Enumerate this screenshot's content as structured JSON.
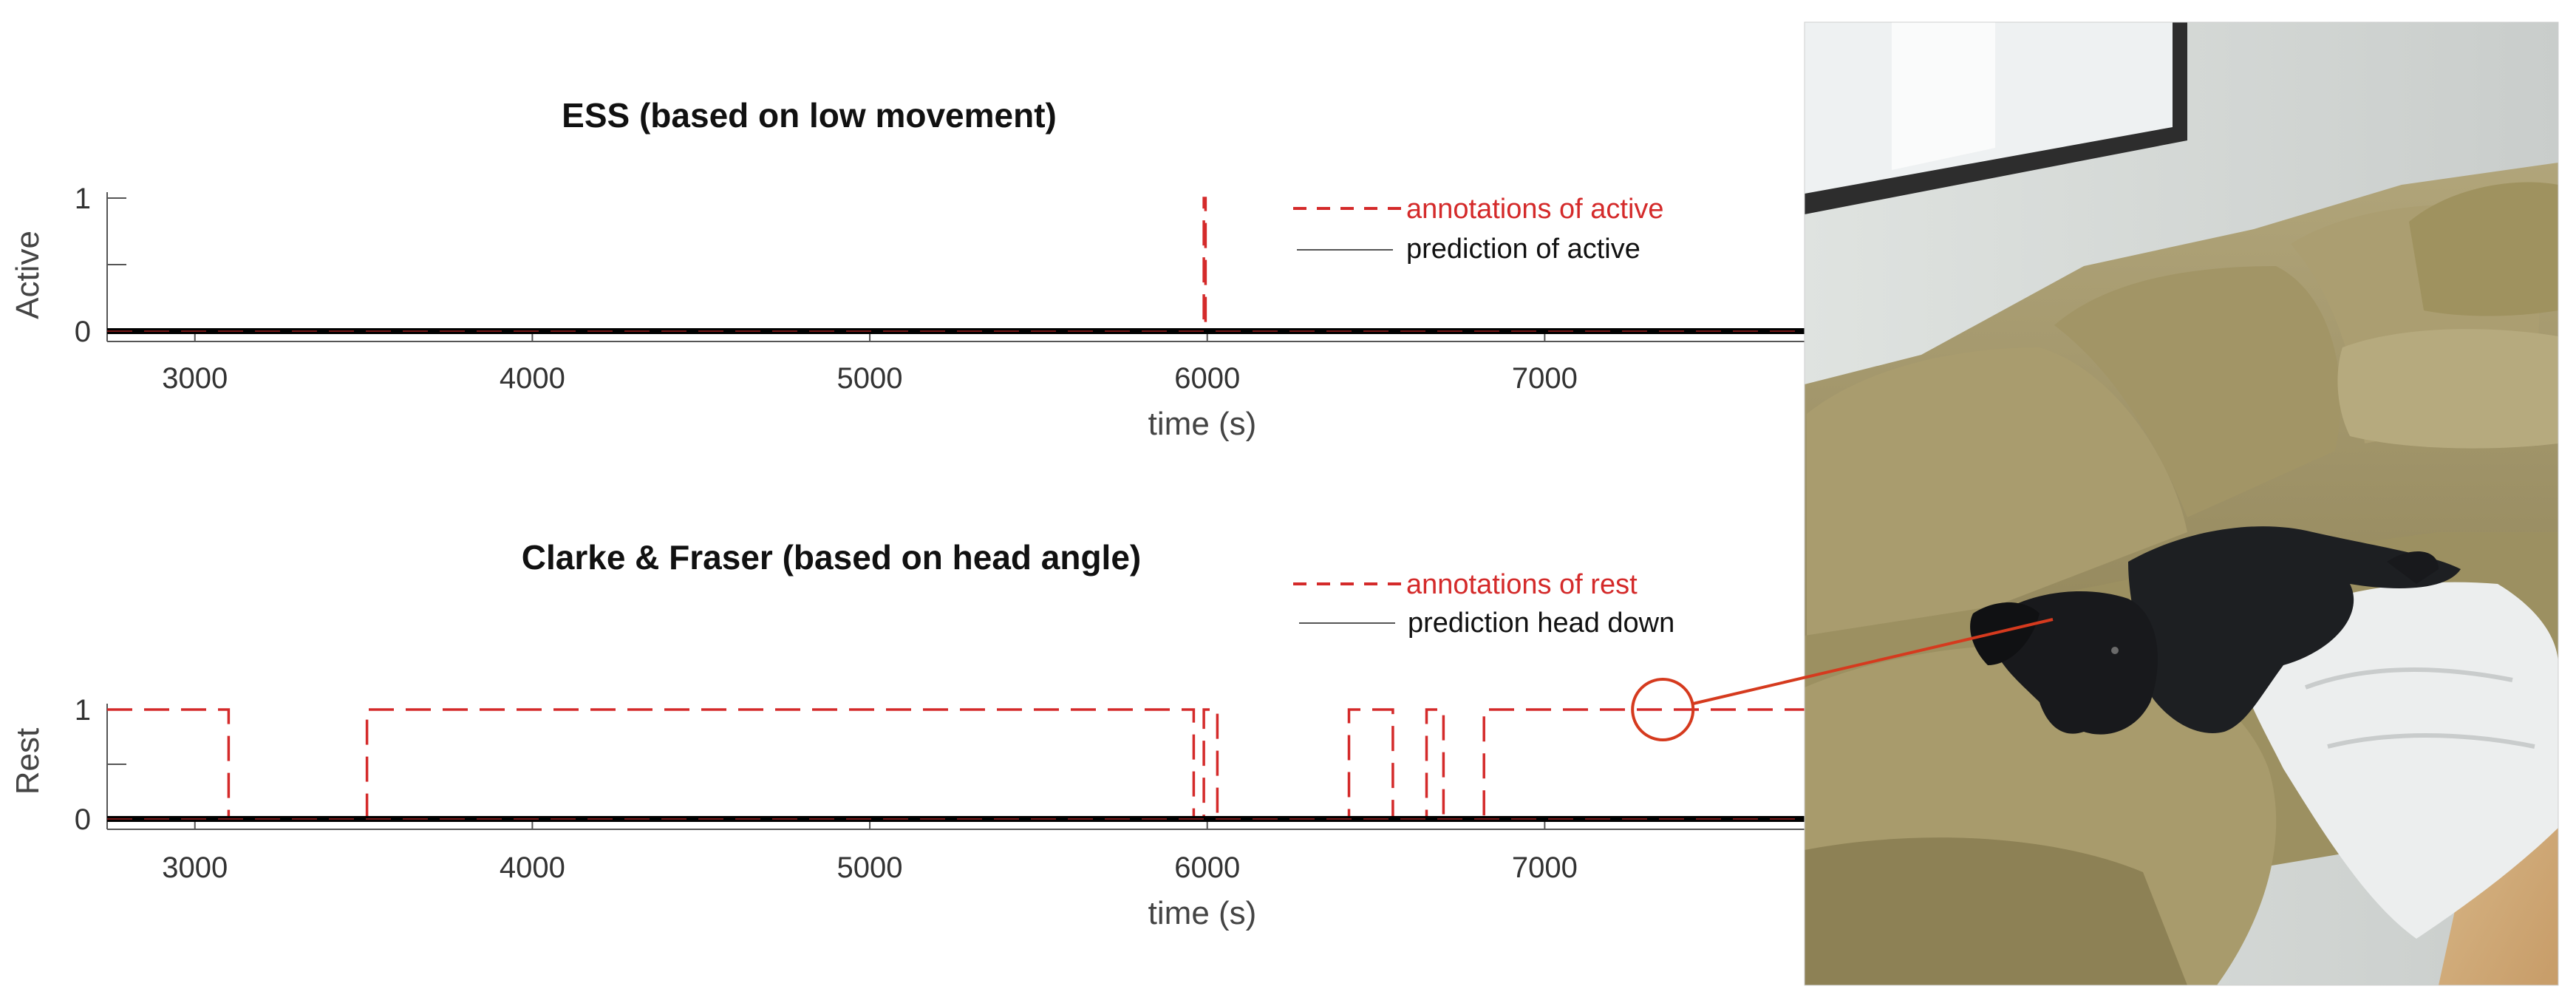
{
  "chart_data": [
    {
      "type": "line",
      "title": "ESS (based on low movement)",
      "xlabel": "time (s)",
      "ylabel": "Active",
      "xlim": [
        2740,
        7770
      ],
      "ylim": [
        0,
        1
      ],
      "xticks": [
        3000,
        4000,
        5000,
        6000,
        7000
      ],
      "yticks": [
        0,
        1
      ],
      "legend_position": "top-right",
      "series": [
        {
          "name": "annotations of active",
          "style": "dashed",
          "color": "#d42a2a",
          "x": [
            2740,
            5990,
            5990,
            5995,
            5995,
            7770
          ],
          "y": [
            0,
            0,
            1,
            1,
            0,
            0
          ]
        },
        {
          "name": "prediction of active",
          "style": "solid",
          "color": "#000000",
          "x": [
            2740,
            7770
          ],
          "y": [
            0,
            0
          ]
        }
      ]
    },
    {
      "type": "line",
      "title": "Clarke & Fraser (based on head angle)",
      "xlabel": "time (s)",
      "ylabel": "Rest",
      "xlim": [
        2740,
        7770
      ],
      "ylim": [
        0,
        1
      ],
      "xticks": [
        3000,
        4000,
        5000,
        6000,
        7000
      ],
      "yticks": [
        0,
        1
      ],
      "legend_position": "top-right",
      "series": [
        {
          "name": "annotations of rest",
          "style": "dashed",
          "color": "#d42a2a",
          "x": [
            2740,
            3100,
            3100,
            3510,
            3510,
            5960,
            5960,
            5990,
            5990,
            6030,
            6030,
            6060,
            6060,
            6420,
            6420,
            6550,
            6550,
            6650,
            6650,
            6700,
            6700,
            6730,
            6730,
            6820,
            6820,
            7770
          ],
          "y": [
            1,
            1,
            0,
            0,
            1,
            1,
            0,
            0,
            1,
            1,
            0,
            0,
            0,
            0,
            1,
            1,
            0,
            0,
            1,
            1,
            0,
            0,
            0,
            0,
            1,
            1
          ]
        },
        {
          "name": "prediction head down",
          "style": "solid",
          "color": "#000000",
          "x": [
            2740,
            7770
          ],
          "y": [
            0,
            0
          ]
        }
      ]
    }
  ],
  "colors": {
    "annotation": "#d42a2a",
    "prediction": "#000000",
    "callout": "#d53a1e"
  },
  "callout": {
    "x": 7350,
    "y": 1
  },
  "photo": {
    "description_icon": "dog-on-couch-photo"
  }
}
